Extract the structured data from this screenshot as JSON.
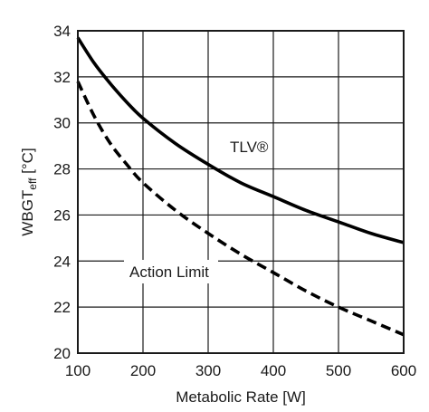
{
  "chart_data": {
    "type": "line",
    "title": "",
    "xlabel": "Metabolic Rate [W]",
    "ylabel_main": "WBGT",
    "ylabel_sub": "eff",
    "ylabel_unit": " [°C]",
    "xlim": [
      100,
      600
    ],
    "ylim": [
      20,
      34
    ],
    "xticks": [
      100,
      200,
      300,
      400,
      500,
      600
    ],
    "yticks": [
      20,
      22,
      24,
      26,
      28,
      30,
      32,
      34
    ],
    "grid": true,
    "series": [
      {
        "name": "TLV®",
        "style": "solid",
        "color": "#000000",
        "x": [
          100,
          125,
          150,
          175,
          200,
          250,
          300,
          350,
          400,
          450,
          500,
          550,
          600
        ],
        "y": [
          33.7,
          32.6,
          31.7,
          30.9,
          30.2,
          29.1,
          28.2,
          27.4,
          26.8,
          26.2,
          25.7,
          25.2,
          24.8
        ]
      },
      {
        "name": "Action Limit",
        "style": "dashed",
        "color": "#000000",
        "x": [
          100,
          125,
          150,
          175,
          200,
          250,
          300,
          350,
          400,
          450,
          500,
          550,
          600
        ],
        "y": [
          31.8,
          30.3,
          29.1,
          28.2,
          27.4,
          26.2,
          25.2,
          24.3,
          23.5,
          22.7,
          22.0,
          21.4,
          20.8
        ]
      }
    ]
  }
}
